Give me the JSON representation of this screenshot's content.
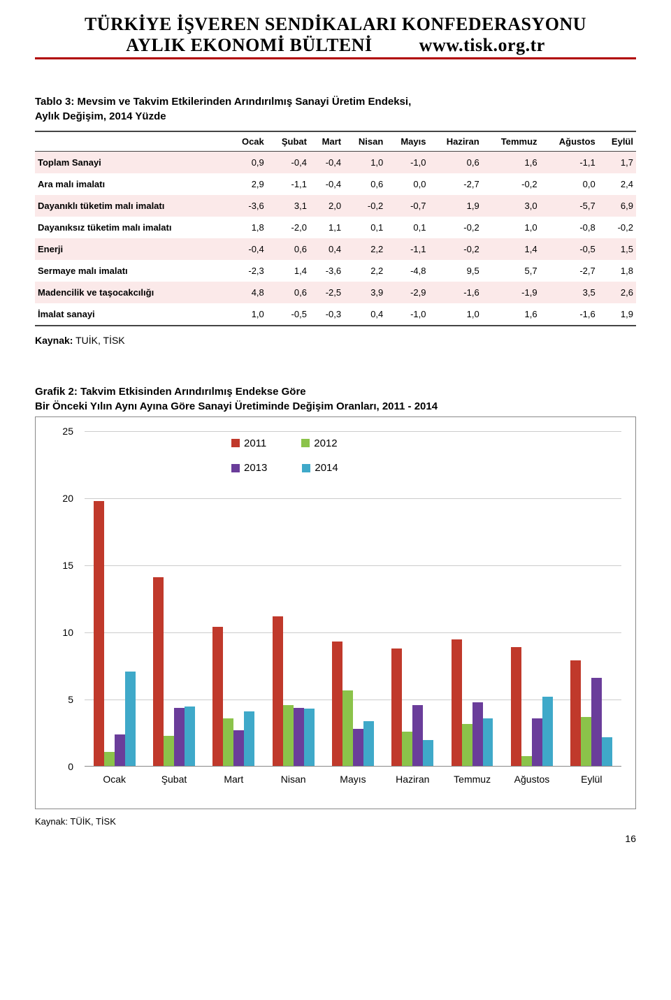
{
  "header": {
    "line1": "TÜRKİYE İŞVEREN SENDİKALARI KONFEDERASYONU",
    "line2_left": "AYLIK EKONOMİ BÜLTENİ",
    "line2_right": "www.tisk.org.tr"
  },
  "table": {
    "caption_l1": "Tablo 3: Mevsim ve Takvim Etkilerinden Arındırılmış Sanayi Üretim Endeksi,",
    "caption_l2": "Aylık Değişim, 2014 Yüzde",
    "cols": [
      "Ocak",
      "Şubat",
      "Mart",
      "Nisan",
      "Mayıs",
      "Haziran",
      "Temmuz",
      "Ağustos",
      "Eylül"
    ],
    "rows": [
      {
        "label": "Toplam Sanayi",
        "alt": true,
        "v": [
          "0,9",
          "-0,4",
          "-0,4",
          "1,0",
          "-1,0",
          "0,6",
          "1,6",
          "-1,1",
          "1,7"
        ]
      },
      {
        "label": "Ara malı imalatı",
        "alt": false,
        "v": [
          "2,9",
          "-1,1",
          "-0,4",
          "0,6",
          "0,0",
          "-2,7",
          "-0,2",
          "0,0",
          "2,4"
        ]
      },
      {
        "label": "Dayanıklı tüketim malı imalatı",
        "alt": true,
        "v": [
          "-3,6",
          "3,1",
          "2,0",
          "-0,2",
          "-0,7",
          "1,9",
          "3,0",
          "-5,7",
          "6,9"
        ]
      },
      {
        "label": "Dayanıksız tüketim malı imalatı",
        "alt": false,
        "v": [
          "1,8",
          "-2,0",
          "1,1",
          "0,1",
          "0,1",
          "-0,2",
          "1,0",
          "-0,8",
          "-0,2"
        ]
      },
      {
        "label": "Enerji",
        "alt": true,
        "v": [
          "-0,4",
          "0,6",
          "0,4",
          "2,2",
          "-1,1",
          "-0,2",
          "1,4",
          "-0,5",
          "1,5"
        ]
      },
      {
        "label": "Sermaye malı imalatı",
        "alt": false,
        "v": [
          "-2,3",
          "1,4",
          "-3,6",
          "2,2",
          "-4,8",
          "9,5",
          "5,7",
          "-2,7",
          "1,8"
        ]
      },
      {
        "label": "Madencilik ve taşocakcılığı",
        "alt": true,
        "v": [
          "4,8",
          "0,6",
          "-2,5",
          "3,9",
          "-2,9",
          "-1,6",
          "-1,9",
          "3,5",
          "2,6"
        ]
      },
      {
        "label": "İmalat sanayi",
        "alt": false,
        "v": [
          "1,0",
          "-0,5",
          "-0,3",
          "0,4",
          "-1,0",
          "1,0",
          "1,6",
          "-1,6",
          "1,9"
        ]
      }
    ],
    "source_label": "Kaynak:",
    "source_value": "TUİK, TİSK"
  },
  "chart": {
    "caption_l1": "Grafik 2: Takvim Etkisinden Arındırılmış Endekse Göre",
    "caption_l2": "Bir Önceki Yılın Aynı Ayına Göre Sanayi Üretiminde Değişim Oranları, 2011 - 2014",
    "ymin": 0,
    "ymax": 25,
    "ytick_step": 5,
    "yticks": [
      "0",
      "5",
      "10",
      "15",
      "20",
      "25"
    ],
    "categories": [
      "Ocak",
      "Şubat",
      "Mart",
      "Nisan",
      "Mayıs",
      "Haziran",
      "Temmuz",
      "Ağustos",
      "Eylül"
    ],
    "series": [
      {
        "name": "2011",
        "color": "#c0392b",
        "values": [
          19.8,
          14.1,
          10.4,
          11.2,
          9.3,
          8.8,
          9.5,
          8.9,
          7.9
        ]
      },
      {
        "name": "2012",
        "color": "#8bc34a",
        "values": [
          1.1,
          2.3,
          3.6,
          4.6,
          5.7,
          2.6,
          3.2,
          0.8,
          3.7
        ]
      },
      {
        "name": "2013",
        "color": "#6a3d9a",
        "values": [
          2.4,
          4.4,
          2.7,
          4.4,
          2.8,
          4.6,
          4.8,
          3.6,
          6.6
        ]
      },
      {
        "name": "2014",
        "color": "#3fa9c9",
        "values": [
          7.1,
          4.5,
          4.1,
          4.3,
          3.4,
          2.0,
          3.6,
          5.2,
          2.2
        ]
      }
    ],
    "bar_group_inner_width": 0.7,
    "legend": {
      "items": [
        {
          "label": "2011",
          "color": "#c0392b"
        },
        {
          "label": "2012",
          "color": "#8bc34a"
        },
        {
          "label": "2013",
          "color": "#6a3d9a"
        },
        {
          "label": "2014",
          "color": "#3fa9c9"
        }
      ]
    },
    "source_label": "Kaynak:",
    "source_value": "TÜİK, TİSK"
  },
  "page_number": "16"
}
